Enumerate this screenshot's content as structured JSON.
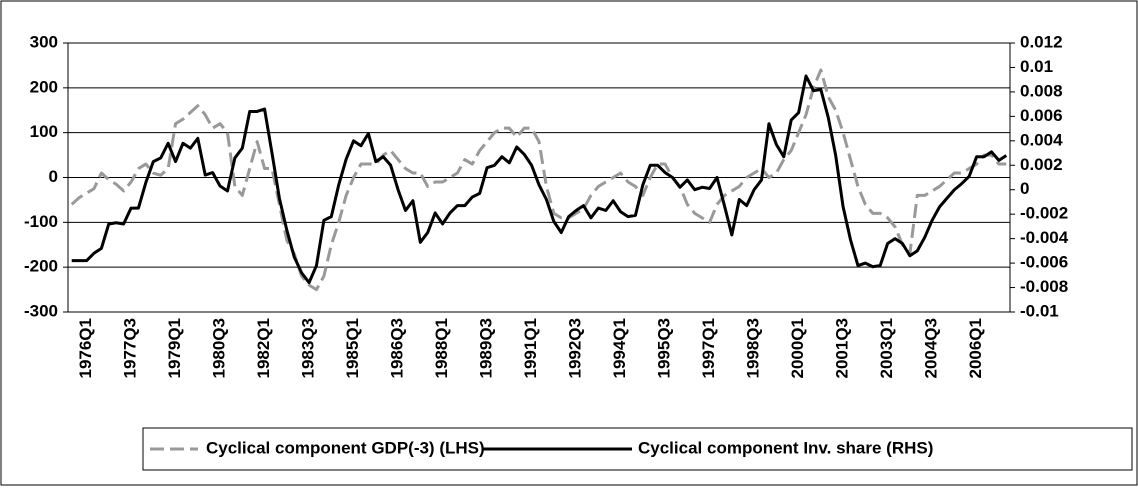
{
  "chart_data": {
    "type": "line",
    "categories": [
      null,
      null,
      "1976Q1",
      null,
      null,
      null,
      null,
      null,
      "1977Q3",
      null,
      null,
      null,
      null,
      null,
      "1979Q1",
      null,
      null,
      null,
      null,
      null,
      "1980Q3",
      null,
      null,
      null,
      null,
      null,
      "1982Q1",
      null,
      null,
      null,
      null,
      null,
      "1983Q3",
      null,
      null,
      null,
      null,
      null,
      "1985Q1",
      null,
      null,
      null,
      null,
      null,
      "1986Q3",
      null,
      null,
      null,
      null,
      null,
      "1988Q1",
      null,
      null,
      null,
      null,
      null,
      "1989Q3",
      null,
      null,
      null,
      null,
      null,
      "1991Q1",
      null,
      null,
      null,
      null,
      null,
      "1992Q3",
      null,
      null,
      null,
      null,
      null,
      "1994Q1",
      null,
      null,
      null,
      null,
      null,
      "1995Q3",
      null,
      null,
      null,
      null,
      null,
      "1997Q1",
      null,
      null,
      null,
      null,
      null,
      "1998Q3",
      null,
      null,
      null,
      null,
      null,
      "2000Q1",
      null,
      null,
      null,
      null,
      null,
      "2001Q3",
      null,
      null,
      null,
      null,
      null,
      "2003Q1",
      null,
      null,
      null,
      null,
      null,
      "2004Q3",
      null,
      null,
      null,
      null,
      null,
      "2006Q1",
      null,
      null,
      null,
      null
    ],
    "series": [
      {
        "name": "Cyclical component GDP(-3) (LHS)",
        "color": "#999999",
        "dashed": true,
        "axis": "y",
        "values": [
          -60,
          -45,
          -35,
          -25,
          10,
          -5,
          -15,
          -30,
          -10,
          20,
          30,
          10,
          5,
          20,
          120,
          130,
          145,
          160,
          140,
          110,
          120,
          100,
          -20,
          -40,
          20,
          80,
          20,
          20,
          -60,
          -140,
          -170,
          -220,
          -240,
          -250,
          -220,
          -150,
          -100,
          -40,
          0,
          30,
          30,
          30,
          50,
          60,
          40,
          20,
          10,
          10,
          -20,
          -10,
          -10,
          0,
          10,
          40,
          30,
          60,
          80,
          100,
          110,
          110,
          90,
          110,
          110,
          80,
          -20,
          -80,
          -90,
          -90,
          -80,
          -70,
          -40,
          -20,
          -10,
          0,
          10,
          -10,
          -20,
          -40,
          0,
          30,
          30,
          0,
          -20,
          -60,
          -80,
          -90,
          -100,
          -60,
          -40,
          -30,
          -20,
          0,
          10,
          20,
          0,
          10,
          40,
          60,
          100,
          140,
          200,
          240,
          180,
          150,
          100,
          40,
          -20,
          -60,
          -80,
          -80,
          -90,
          -110,
          -150,
          -170,
          -40,
          -40,
          -30,
          -20,
          -5,
          10,
          10,
          20,
          30,
          50,
          50,
          30,
          30
        ]
      },
      {
        "name": "Cyclical component Inv. share (RHS)",
        "color": "#000000",
        "dashed": false,
        "axis": "y2",
        "values": [
          -0.0058,
          -0.0058,
          -0.0058,
          -0.0052,
          -0.0048,
          -0.0028,
          -0.0027,
          -0.0028,
          -0.0015,
          -0.0015,
          0.0006,
          0.0023,
          0.0026,
          0.0038,
          0.0023,
          0.0038,
          0.0034,
          0.0042,
          0.0012,
          0.0014,
          0.0003,
          -0.0001,
          0.0026,
          0.0034,
          0.0064,
          0.0064,
          0.0066,
          0.003,
          -0.0007,
          -0.0033,
          -0.0055,
          -0.0068,
          -0.0076,
          -0.0062,
          -0.0025,
          -0.0022,
          0.0004,
          0.0025,
          0.004,
          0.0036,
          0.0046,
          0.0023,
          0.0027,
          0.002,
          0,
          -0.0017,
          -0.0009,
          -0.0043,
          -0.0035,
          -0.0019,
          -0.0028,
          -0.0019,
          -0.0013,
          -0.0013,
          -0.0006,
          -0.0003,
          0.0018,
          0.002,
          0.0027,
          0.0022,
          0.0035,
          0.0029,
          0.002,
          0.0004,
          -0.0008,
          -0.0026,
          -0.0035,
          -0.0022,
          -0.0017,
          -0.0013,
          -0.0023,
          -0.0015,
          -0.0017,
          -0.0009,
          -0.0018,
          -0.0022,
          -0.0021,
          0.0004,
          0.002,
          0.002,
          0.0014,
          0.001,
          0.0002,
          0.0008,
          0,
          0.0002,
          0.0001,
          0.001,
          -0.0013,
          -0.0037,
          -0.0008,
          -0.0013,
          0,
          0.0008,
          0.0054,
          0.0037,
          0.0027,
          0.0057,
          0.0063,
          0.0093,
          0.0081,
          0.0082,
          0.0059,
          0.0028,
          -0.0014,
          -0.0041,
          -0.0062,
          -0.006,
          -0.0063,
          -0.0062,
          -0.0044,
          -0.004,
          -0.0044,
          -0.0054,
          -0.005,
          -0.0039,
          -0.0025,
          -0.0014,
          -0.0007,
          0,
          0.0005,
          0.0011,
          0.0027,
          0.0027,
          0.0031,
          0.0024,
          0.0028
        ]
      }
    ],
    "ylim": [
      -300,
      300
    ],
    "yticks": [
      -300,
      -200,
      -100,
      0,
      100,
      200,
      300
    ],
    "y2lim": [
      -0.01,
      0.012
    ],
    "y2ticks": [
      -0.01,
      -0.008,
      -0.006,
      -0.004,
      -0.002,
      0,
      0.002,
      0.004,
      0.006,
      0.008,
      0.01,
      0.012
    ],
    "grid": true,
    "legend": "bottom"
  }
}
